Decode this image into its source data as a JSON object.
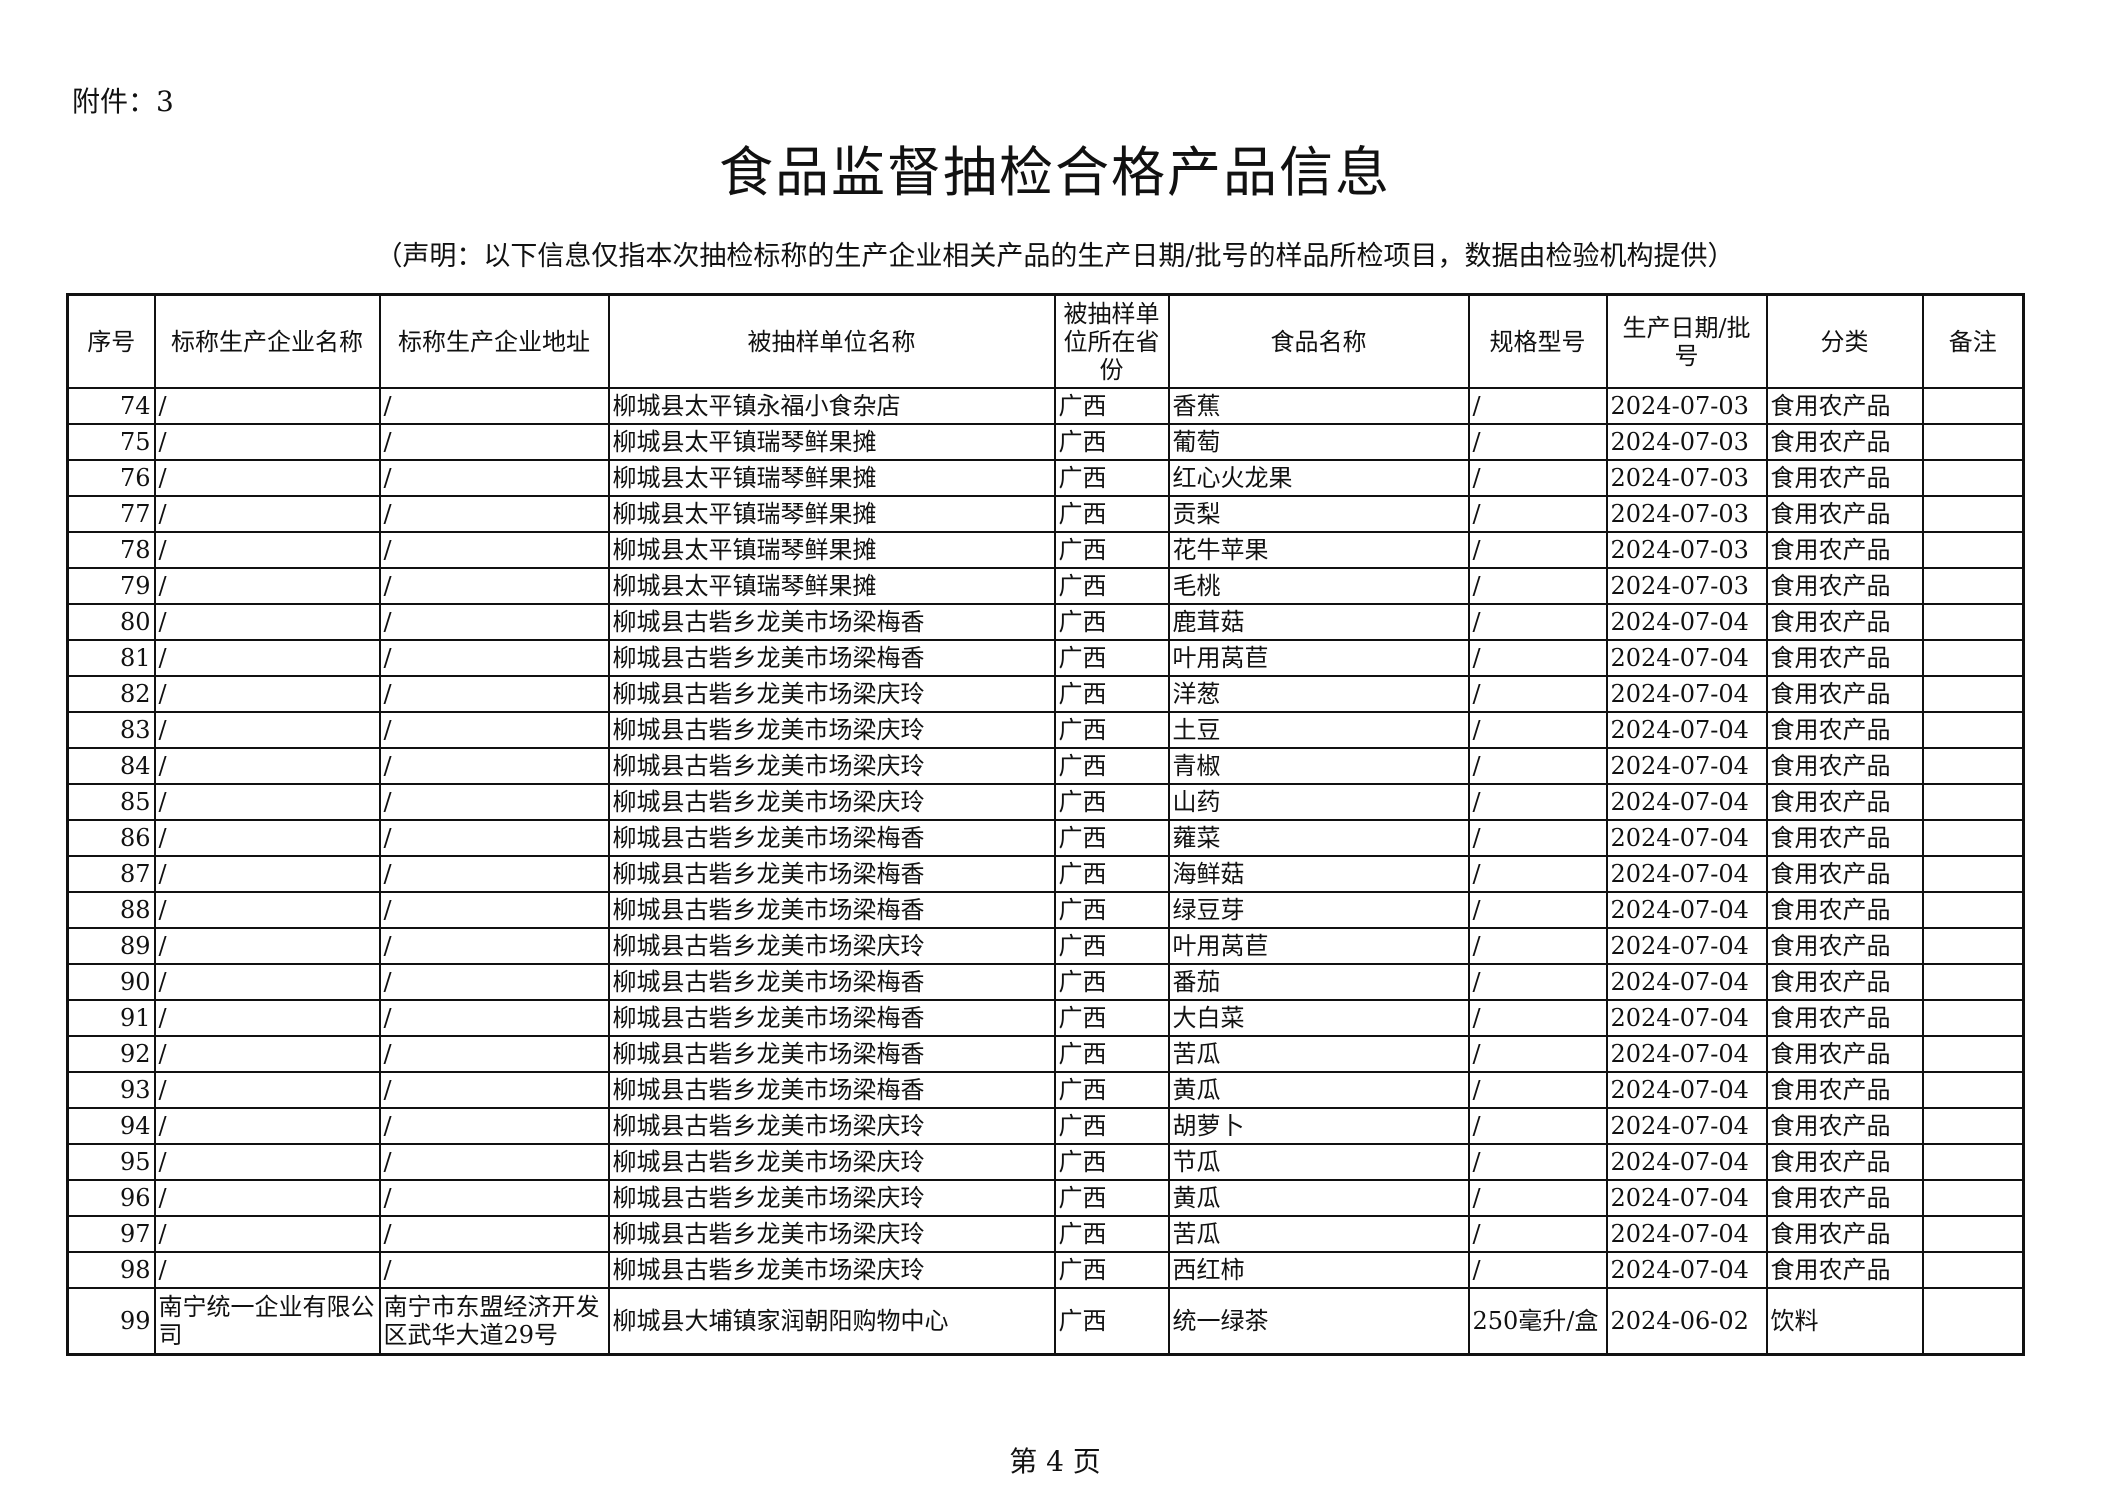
{
  "attachment": "附件：3",
  "title": "食品监督抽检合格产品信息",
  "statement": "（声明：以下信息仅指本次抽检标称的生产企业相关产品的生产日期/批号的样品所检项目，数据由检验机构提供）",
  "headers": [
    "序号",
    "标称生产企业名称",
    "标称生产企业地址",
    "被抽样单位名称",
    "被抽样单位所在省份",
    "食品名称",
    "规格型号",
    "生产日期/批号",
    "分类",
    "备注"
  ],
  "rows": [
    [
      "74",
      "/",
      "/",
      "柳城县太平镇永福小食杂店",
      "广西",
      "香蕉",
      "/",
      "2024-07-03",
      "食用农产品",
      ""
    ],
    [
      "75",
      "/",
      "/",
      "柳城县太平镇瑞琴鲜果摊",
      "广西",
      "葡萄",
      "/",
      "2024-07-03",
      "食用农产品",
      ""
    ],
    [
      "76",
      "/",
      "/",
      "柳城县太平镇瑞琴鲜果摊",
      "广西",
      "红心火龙果",
      "/",
      "2024-07-03",
      "食用农产品",
      ""
    ],
    [
      "77",
      "/",
      "/",
      "柳城县太平镇瑞琴鲜果摊",
      "广西",
      "贡梨",
      "/",
      "2024-07-03",
      "食用农产品",
      ""
    ],
    [
      "78",
      "/",
      "/",
      "柳城县太平镇瑞琴鲜果摊",
      "广西",
      "花牛苹果",
      "/",
      "2024-07-03",
      "食用农产品",
      ""
    ],
    [
      "79",
      "/",
      "/",
      "柳城县太平镇瑞琴鲜果摊",
      "广西",
      "毛桃",
      "/",
      "2024-07-03",
      "食用农产品",
      ""
    ],
    [
      "80",
      "/",
      "/",
      "柳城县古砦乡龙美市场梁梅香",
      "广西",
      "鹿茸菇",
      "/",
      "2024-07-04",
      "食用农产品",
      ""
    ],
    [
      "81",
      "/",
      "/",
      "柳城县古砦乡龙美市场梁梅香",
      "广西",
      "叶用莴苣",
      "/",
      "2024-07-04",
      "食用农产品",
      ""
    ],
    [
      "82",
      "/",
      "/",
      "柳城县古砦乡龙美市场梁庆玲",
      "广西",
      "洋葱",
      "/",
      "2024-07-04",
      "食用农产品",
      ""
    ],
    [
      "83",
      "/",
      "/",
      "柳城县古砦乡龙美市场梁庆玲",
      "广西",
      "土豆",
      "/",
      "2024-07-04",
      "食用农产品",
      ""
    ],
    [
      "84",
      "/",
      "/",
      "柳城县古砦乡龙美市场梁庆玲",
      "广西",
      "青椒",
      "/",
      "2024-07-04",
      "食用农产品",
      ""
    ],
    [
      "85",
      "/",
      "/",
      "柳城县古砦乡龙美市场梁庆玲",
      "广西",
      "山药",
      "/",
      "2024-07-04",
      "食用农产品",
      ""
    ],
    [
      "86",
      "/",
      "/",
      "柳城县古砦乡龙美市场梁梅香",
      "广西",
      "蕹菜",
      "/",
      "2024-07-04",
      "食用农产品",
      ""
    ],
    [
      "87",
      "/",
      "/",
      "柳城县古砦乡龙美市场梁梅香",
      "广西",
      "海鲜菇",
      "/",
      "2024-07-04",
      "食用农产品",
      ""
    ],
    [
      "88",
      "/",
      "/",
      "柳城县古砦乡龙美市场梁梅香",
      "广西",
      "绿豆芽",
      "/",
      "2024-07-04",
      "食用农产品",
      ""
    ],
    [
      "89",
      "/",
      "/",
      "柳城县古砦乡龙美市场梁庆玲",
      "广西",
      "叶用莴苣",
      "/",
      "2024-07-04",
      "食用农产品",
      ""
    ],
    [
      "90",
      "/",
      "/",
      "柳城县古砦乡龙美市场梁梅香",
      "广西",
      "番茄",
      "/",
      "2024-07-04",
      "食用农产品",
      ""
    ],
    [
      "91",
      "/",
      "/",
      "柳城县古砦乡龙美市场梁梅香",
      "广西",
      "大白菜",
      "/",
      "2024-07-04",
      "食用农产品",
      ""
    ],
    [
      "92",
      "/",
      "/",
      "柳城县古砦乡龙美市场梁梅香",
      "广西",
      "苦瓜",
      "/",
      "2024-07-04",
      "食用农产品",
      ""
    ],
    [
      "93",
      "/",
      "/",
      "柳城县古砦乡龙美市场梁梅香",
      "广西",
      "黄瓜",
      "/",
      "2024-07-04",
      "食用农产品",
      ""
    ],
    [
      "94",
      "/",
      "/",
      "柳城县古砦乡龙美市场梁庆玲",
      "广西",
      "胡萝卜",
      "/",
      "2024-07-04",
      "食用农产品",
      ""
    ],
    [
      "95",
      "/",
      "/",
      "柳城县古砦乡龙美市场梁庆玲",
      "广西",
      "节瓜",
      "/",
      "2024-07-04",
      "食用农产品",
      ""
    ],
    [
      "96",
      "/",
      "/",
      "柳城县古砦乡龙美市场梁庆玲",
      "广西",
      "黄瓜",
      "/",
      "2024-07-04",
      "食用农产品",
      ""
    ],
    [
      "97",
      "/",
      "/",
      "柳城县古砦乡龙美市场梁庆玲",
      "广西",
      "苦瓜",
      "/",
      "2024-07-04",
      "食用农产品",
      ""
    ],
    [
      "98",
      "/",
      "/",
      "柳城县古砦乡龙美市场梁庆玲",
      "广西",
      "西红柿",
      "/",
      "2024-07-04",
      "食用农产品",
      ""
    ],
    [
      "99",
      "南宁统一企业有限公司",
      "南宁市东盟经济开发区武华大道29号",
      "柳城县大埔镇家润朝阳购物中心",
      "广西",
      "统一绿茶",
      "250毫升/盒",
      "2024-06-02",
      "饮料",
      ""
    ]
  ],
  "footer": "第 4 页"
}
